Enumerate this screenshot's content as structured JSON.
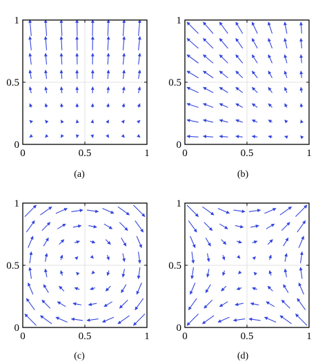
{
  "chart_data": [
    {
      "type": "quiver",
      "caption": "(a)",
      "field": "converge-bottom-center",
      "x_ticks": [
        "0",
        "0.5",
        "1"
      ],
      "y_ticks": [
        "0",
        "0.5",
        "1"
      ],
      "xlim": [
        0,
        1
      ],
      "ylim": [
        0,
        1
      ],
      "grid_points": [
        0.0625,
        0.1875,
        0.3125,
        0.4375,
        0.5625,
        0.6875,
        0.8125,
        0.9375
      ],
      "grid": true,
      "arrow_color": "#3344dd"
    },
    {
      "type": "quiver",
      "caption": "(b)",
      "field": "source-bottom-right",
      "x_ticks": [
        "0",
        "0.5",
        "1"
      ],
      "y_ticks": [
        "0",
        "0.5",
        "1"
      ],
      "xlim": [
        0,
        1
      ],
      "ylim": [
        0,
        1
      ],
      "grid_points": [
        0.0625,
        0.1875,
        0.3125,
        0.4375,
        0.5625,
        0.6875,
        0.8125,
        0.9375
      ],
      "grid": true,
      "arrow_color": "#3344dd"
    },
    {
      "type": "quiver",
      "caption": "(c)",
      "field": "rotation-clockwise",
      "x_ticks": [
        "0",
        "0.5",
        "1"
      ],
      "y_ticks": [
        "0",
        "0.5",
        "1"
      ],
      "xlim": [
        0,
        1
      ],
      "ylim": [
        0,
        1
      ],
      "grid_points": [
        0.0625,
        0.1875,
        0.3125,
        0.4375,
        0.5625,
        0.6875,
        0.8125,
        0.9375
      ],
      "grid": true,
      "arrow_color": "#3344dd"
    },
    {
      "type": "quiver",
      "caption": "(d)",
      "field": "saddle-center",
      "x_ticks": [
        "0",
        "0.5",
        "1"
      ],
      "y_ticks": [
        "0",
        "0.5",
        "1"
      ],
      "xlim": [
        0,
        1
      ],
      "ylim": [
        0,
        1
      ],
      "grid_points": [
        0.0625,
        0.1875,
        0.3125,
        0.4375,
        0.5625,
        0.6875,
        0.8125,
        0.9375
      ],
      "grid": true,
      "arrow_color": "#3344dd"
    }
  ]
}
